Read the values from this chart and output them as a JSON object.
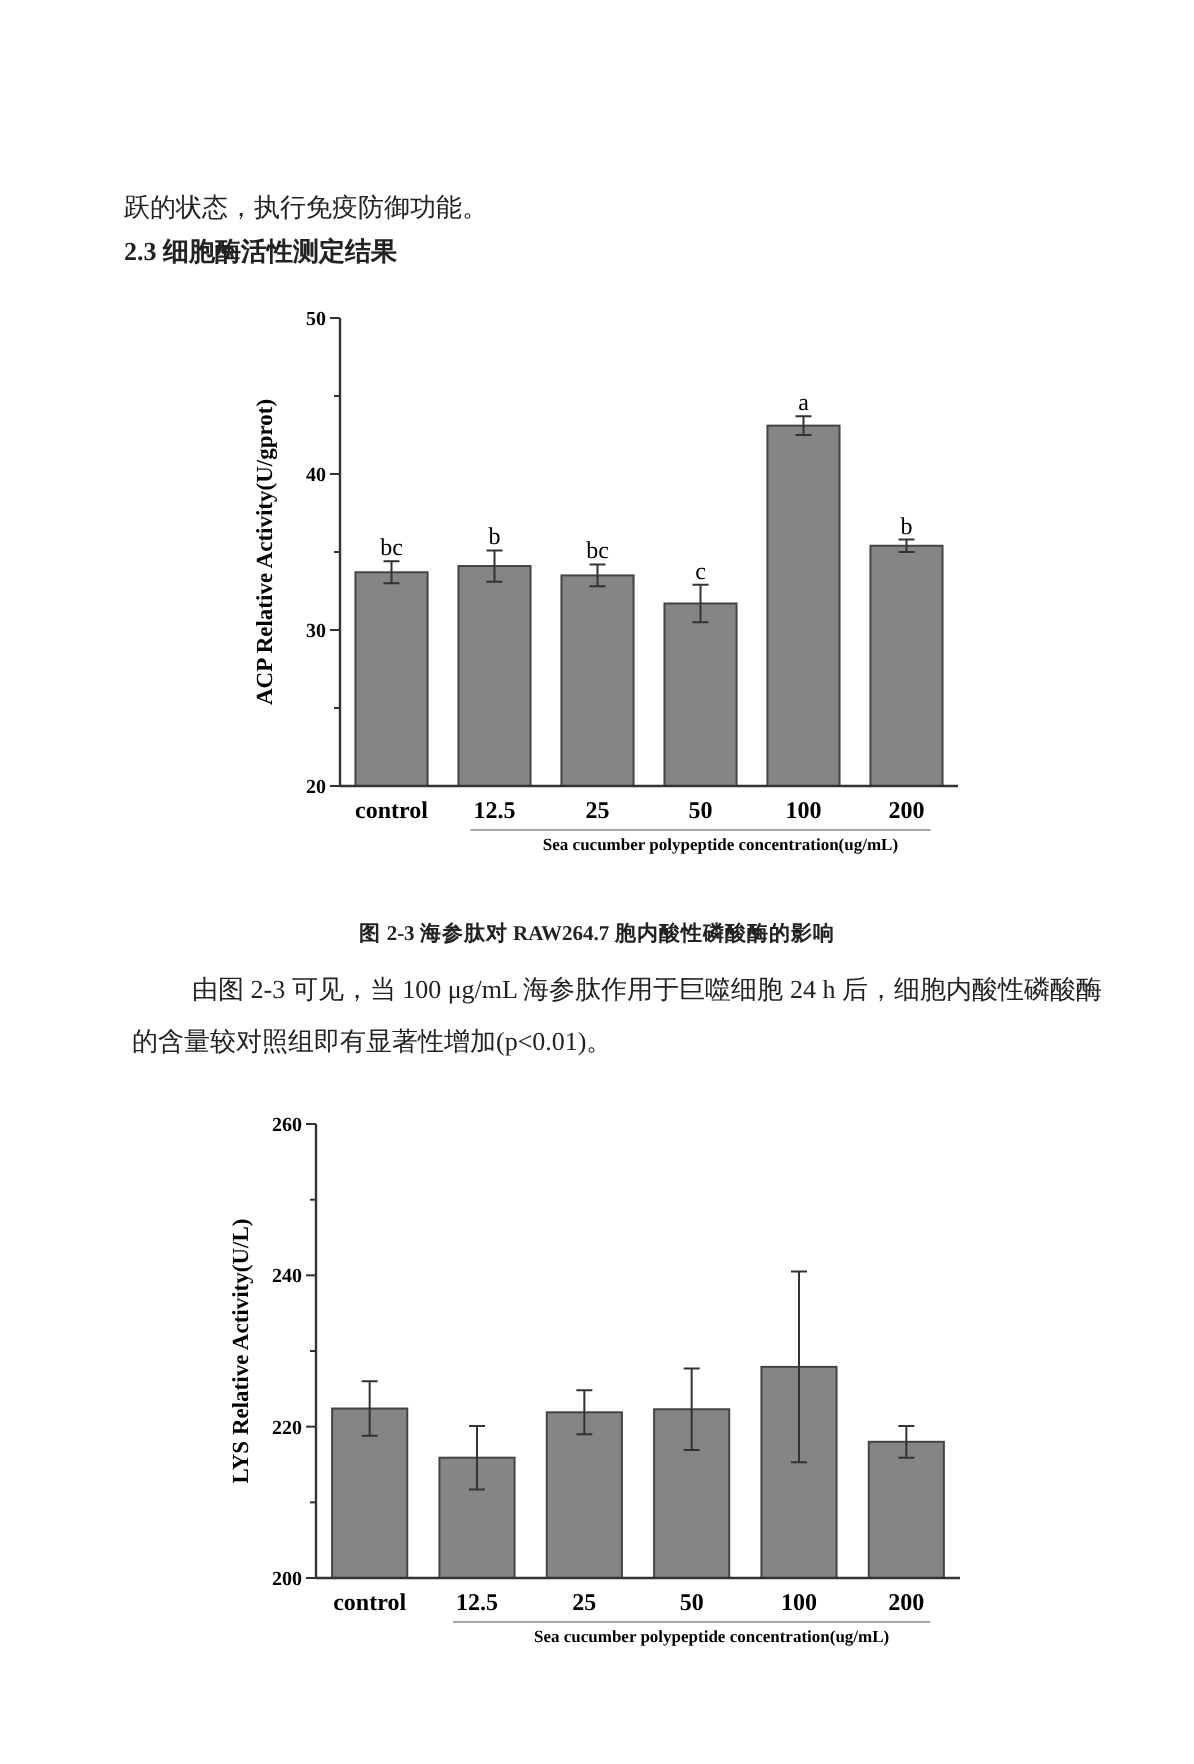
{
  "chart_data": [
    {
      "type": "bar",
      "ylabel": "ACP Relative Activity(U/gprot)",
      "xlabel": "Sea cucumber polypeptide concentration(ug/mL)",
      "categories": [
        "control",
        "12.5",
        "25",
        "50",
        "100",
        "200"
      ],
      "values": [
        33.7,
        34.1,
        33.5,
        31.7,
        43.1,
        35.4
      ],
      "errors": [
        0.7,
        1.0,
        0.7,
        1.2,
        0.6,
        0.4
      ],
      "color": "#858585",
      "ylim": [
        20,
        50
      ],
      "yticks": [
        20,
        {
          "value": 25,
          "label": null
        },
        30,
        {
          "value": 35,
          "label": null
        },
        40,
        {
          "value": 45,
          "label": null
        },
        50
      ],
      "annotations": [
        "跃的状态，执行免疫防御功能。",
        "2.3 细胞酶活性测定结果",
        "图 2-3 海参肽对 RAW264.7 胞内酸性磷酸酶的影响",
        "由图 2-3 可见，当 100 μg/mL 海参肽作用于巨噬细胞 24 h 后，细胞内酸性磷酸酶的含量较对照组即有显著性增加(p<0.01)。",
        {
          "text": "bc",
          "x": "control",
          "y": 34.4
        },
        {
          "text": "b",
          "x": "12.5",
          "y": 35.1
        },
        {
          "text": "bc",
          "x": "25",
          "y": 34.2
        },
        {
          "text": "c",
          "x": "50",
          "y": 32.9
        },
        {
          "text": "a",
          "x": "100",
          "y": 43.7
        },
        {
          "text": "b",
          "x": "200",
          "y": 35.8
        }
      ]
    },
    {
      "type": "bar",
      "ylabel": "LYS Relative Activity(U/L)",
      "xlabel": "Sea cucumber polypeptide concentration(ug/mL)",
      "categories": [
        "control",
        "12.5",
        "25",
        "50",
        "100",
        "200"
      ],
      "values": [
        222.4,
        215.9,
        221.9,
        222.3,
        227.9,
        218.0
      ],
      "errors": [
        3.6,
        4.2,
        2.9,
        5.4,
        12.6,
        2.1
      ],
      "color": "#858585",
      "ylim": [
        200,
        260
      ],
      "yticks": [
        200,
        {
          "value": 210,
          "label": null
        },
        220,
        {
          "value": 230,
          "label": null
        },
        240,
        {
          "value": 250,
          "label": null
        },
        260
      ]
    }
  ]
}
